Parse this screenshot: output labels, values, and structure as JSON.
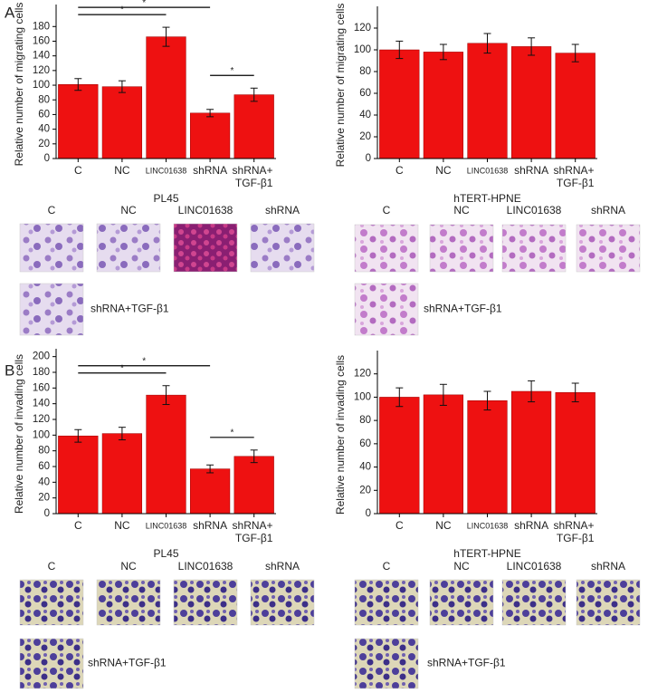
{
  "chart_data": [
    {
      "type": "bar",
      "ylabel": "Relative number of migrating cells",
      "xlabel": "PL45",
      "categories": [
        "C",
        "NC",
        "LINC01638",
        "shRNA",
        "shRNA+ TGF-β1"
      ],
      "values": [
        101,
        98,
        166,
        62,
        87
      ],
      "errors": [
        8,
        8,
        13,
        5,
        9
      ],
      "color": "#ee1111",
      "ylim": [
        0,
        210
      ],
      "yticks": [
        0,
        20,
        40,
        60,
        80,
        100,
        120,
        140,
        160,
        180
      ],
      "annotations": [
        {
          "text": "*",
          "from": "C",
          "to": "shRNA"
        },
        {
          "text": "*",
          "from": "C",
          "to": "LINC01638"
        },
        {
          "text": "*",
          "from": "shRNA",
          "to": "shRNA+ TGF-β1"
        }
      ]
    },
    {
      "type": "bar",
      "ylabel": "Relative number of migrating cells",
      "xlabel": "hTERT-HPNE",
      "categories": [
        "C",
        "NC",
        "LINC01638",
        "shRNA",
        "shRNA+ TGF-β1"
      ],
      "values": [
        100,
        98,
        106,
        103,
        97
      ],
      "errors": [
        8,
        7,
        9,
        8,
        8
      ],
      "color": "#ee1111",
      "ylim": [
        0,
        140
      ],
      "yticks": [
        0,
        20,
        40,
        60,
        80,
        100,
        120
      ],
      "annotations": []
    },
    {
      "type": "bar",
      "ylabel": "Relative number of invading cells",
      "xlabel": "PL45",
      "categories": [
        "C",
        "NC",
        "LINC01638",
        "shRNA",
        "shRNA+ TGF-β1"
      ],
      "values": [
        99,
        102,
        151,
        57,
        73
      ],
      "errors": [
        8,
        8,
        12,
        5,
        8
      ],
      "color": "#ee1111",
      "ylim": [
        0,
        210
      ],
      "yticks": [
        0,
        20,
        40,
        60,
        80,
        100,
        120,
        140,
        160,
        180,
        200
      ],
      "annotations": [
        {
          "text": "*",
          "from": "C",
          "to": "shRNA"
        },
        {
          "text": "*",
          "from": "C",
          "to": "LINC01638"
        },
        {
          "text": "*",
          "from": "shRNA",
          "to": "shRNA+ TGF-β1"
        }
      ]
    },
    {
      "type": "bar",
      "ylabel": "Relative number of invading cells",
      "xlabel": "hTERT-HPNE",
      "categories": [
        "C",
        "NC",
        "LINC01638",
        "shRNA",
        "shRNA+ TGF-β1"
      ],
      "values": [
        100,
        102,
        97,
        105,
        104
      ],
      "errors": [
        8,
        9,
        8,
        9,
        8
      ],
      "color": "#ee1111",
      "ylim": [
        0,
        140
      ],
      "yticks": [
        0,
        20,
        40,
        60,
        80,
        100,
        120
      ],
      "annotations": []
    }
  ],
  "figure": {
    "panels": [
      "A",
      "B"
    ],
    "image_sets": [
      {
        "labels": [
          "C",
          "NC",
          "LINC01638",
          "shRNA",
          "shRNA+TGF-β1"
        ]
      },
      {
        "labels": [
          "C",
          "NC",
          "LINC01638",
          "shRNA",
          "shRNA+TGF-β1"
        ]
      },
      {
        "labels": [
          "C",
          "NC",
          "LINC01638",
          "shRNA",
          "shRNA+TGF-β1"
        ]
      },
      {
        "labels": [
          "C",
          "NC",
          "LINC01638",
          "shRNA",
          "shRNA+TGF-β1"
        ]
      }
    ]
  }
}
